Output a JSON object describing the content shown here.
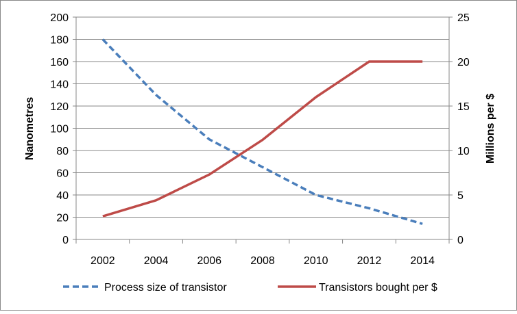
{
  "chart_data": {
    "type": "line",
    "categories": [
      "2002",
      "2004",
      "2006",
      "2008",
      "2010",
      "2012",
      "2014"
    ],
    "y_left": {
      "label": "Nanometres",
      "range": [
        0,
        200
      ],
      "step": 20
    },
    "y_right": {
      "label": "Millions per $",
      "range": [
        0,
        25
      ],
      "step": 5
    },
    "grid": true,
    "legend_position": "bottom",
    "series": [
      {
        "name": "Process size of transistor",
        "axis": "left",
        "style": "dashed",
        "color": "#4a7ebb",
        "values": [
          180,
          130,
          90,
          65,
          40,
          28,
          14
        ]
      },
      {
        "name": "Transistors bought per $",
        "axis": "right",
        "style": "solid",
        "color": "#be4b48",
        "values": [
          2.6,
          4.4,
          7.3,
          11.2,
          16,
          20,
          20
        ]
      }
    ]
  }
}
